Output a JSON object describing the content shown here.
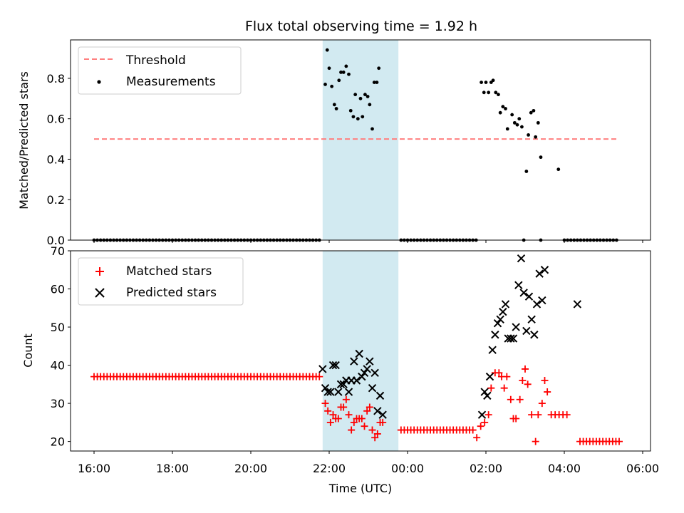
{
  "title": "Flux total observing time = 1.92 h",
  "chart_data": [
    {
      "type": "scatter",
      "panel": "top",
      "ylabel": "Matched/Predicted stars",
      "xlabel": "",
      "x_unit": "hours since 16:00 UTC",
      "xlim": [
        -0.6,
        14.2
      ],
      "ylim": [
        0,
        0.99
      ],
      "yticks": [
        "0.0",
        "0.2",
        "0.4",
        "0.6",
        "0.8"
      ],
      "grid": false,
      "legend_position": "upper left",
      "shaded_span": {
        "from": "21:50",
        "to": "23:46",
        "color": "#add8e6"
      },
      "threshold": {
        "name": "Threshold",
        "value": 0.5,
        "from": "16:00",
        "to": "05:24",
        "color": "#ff0000",
        "style": "dashed"
      },
      "series": [
        {
          "name": "Measurements",
          "color": "#000000",
          "marker": "dot",
          "zero_runs": [
            {
              "from": "16:00",
              "to": "21:46",
              "step_min": 5
            },
            {
              "from": "23:50",
              "to": "01:46",
              "step_min": 5
            },
            {
              "from": "04:00",
              "to": "05:24",
              "step_min": 5
            }
          ],
          "zero_points": [
            "02:58",
            "03:24"
          ],
          "points": [
            [
              "21:54",
              0.77
            ],
            [
              "21:57",
              0.94
            ],
            [
              "22:00",
              0.85
            ],
            [
              "22:04",
              0.76
            ],
            [
              "22:08",
              0.67
            ],
            [
              "22:11",
              0.65
            ],
            [
              "22:15",
              0.79
            ],
            [
              "22:18",
              0.83
            ],
            [
              "22:22",
              0.83
            ],
            [
              "22:26",
              0.86
            ],
            [
              "22:30",
              0.82
            ],
            [
              "22:33",
              0.64
            ],
            [
              "22:37",
              0.61
            ],
            [
              "22:40",
              0.72
            ],
            [
              "22:44",
              0.6
            ],
            [
              "22:48",
              0.7
            ],
            [
              "22:51",
              0.61
            ],
            [
              "22:55",
              0.72
            ],
            [
              "22:59",
              0.71
            ],
            [
              "23:02",
              0.67
            ],
            [
              "23:06",
              0.55
            ],
            [
              "23:09",
              0.78
            ],
            [
              "23:13",
              0.78
            ],
            [
              "23:16",
              0.85
            ],
            [
              "01:53",
              0.78
            ],
            [
              "01:57",
              0.73
            ],
            [
              "02:00",
              0.78
            ],
            [
              "02:04",
              0.73
            ],
            [
              "02:08",
              0.78
            ],
            [
              "02:11",
              0.79
            ],
            [
              "02:15",
              0.73
            ],
            [
              "02:19",
              0.72
            ],
            [
              "02:22",
              0.63
            ],
            [
              "02:26",
              0.66
            ],
            [
              "02:30",
              0.65
            ],
            [
              "02:33",
              0.55
            ],
            [
              "02:40",
              0.62
            ],
            [
              "02:44",
              0.58
            ],
            [
              "02:48",
              0.57
            ],
            [
              "02:51",
              0.6
            ],
            [
              "02:55",
              0.56
            ],
            [
              "03:02",
              0.34
            ],
            [
              "03:05",
              0.52
            ],
            [
              "03:09",
              0.63
            ],
            [
              "03:13",
              0.64
            ],
            [
              "03:16",
              0.51
            ],
            [
              "03:20",
              0.58
            ],
            [
              "03:24",
              0.41
            ],
            [
              "03:51",
              0.35
            ]
          ]
        }
      ]
    },
    {
      "type": "scatter",
      "panel": "bottom",
      "ylabel": "Count",
      "xlabel": "Time (UTC)",
      "x_unit": "hours since 16:00 UTC",
      "xlim": [
        -0.6,
        14.2
      ],
      "ylim": [
        17.5,
        70
      ],
      "yticks": [
        "20",
        "30",
        "40",
        "50",
        "60",
        "70"
      ],
      "xticks": [
        "16:00",
        "18:00",
        "20:00",
        "22:00",
        "00:00",
        "02:00",
        "04:00",
        "06:00"
      ],
      "grid": false,
      "legend_position": "upper left",
      "shaded_span": {
        "from": "21:50",
        "to": "23:46",
        "color": "#add8e6"
      },
      "series": [
        {
          "name": "Matched stars",
          "color": "#ff0000",
          "marker": "plus",
          "flat_runs": [
            {
              "from": "16:00",
              "to": "21:46",
              "step_min": 5,
              "value": 37
            },
            {
              "from": "23:50",
              "to": "01:42",
              "step_min": 5,
              "value": 23
            },
            {
              "from": "04:24",
              "to": "05:24",
              "step_min": 5,
              "value": 20
            }
          ],
          "points": [
            [
              "21:54",
              30
            ],
            [
              "21:58",
              28
            ],
            [
              "22:02",
              25
            ],
            [
              "22:06",
              27
            ],
            [
              "22:10",
              26
            ],
            [
              "22:14",
              26
            ],
            [
              "22:18",
              29
            ],
            [
              "22:22",
              29
            ],
            [
              "22:26",
              31
            ],
            [
              "22:30",
              27
            ],
            [
              "22:34",
              23
            ],
            [
              "22:38",
              25
            ],
            [
              "22:42",
              26
            ],
            [
              "22:46",
              26
            ],
            [
              "22:50",
              26
            ],
            [
              "22:54",
              24
            ],
            [
              "22:58",
              28
            ],
            [
              "23:02",
              29
            ],
            [
              "23:06",
              23
            ],
            [
              "23:10",
              21
            ],
            [
              "23:14",
              22
            ],
            [
              "23:18",
              25
            ],
            [
              "23:22",
              25
            ],
            [
              "01:46",
              21
            ],
            [
              "01:52",
              24
            ],
            [
              "01:58",
              25
            ],
            [
              "02:04",
              27
            ],
            [
              "02:08",
              34
            ],
            [
              "02:14",
              38
            ],
            [
              "02:20",
              38
            ],
            [
              "02:24",
              37
            ],
            [
              "02:28",
              34
            ],
            [
              "02:32",
              37
            ],
            [
              "02:38",
              31
            ],
            [
              "02:42",
              26
            ],
            [
              "02:46",
              26
            ],
            [
              "02:52",
              31
            ],
            [
              "02:56",
              36
            ],
            [
              "03:00",
              39
            ],
            [
              "03:04",
              35
            ],
            [
              "03:10",
              27
            ],
            [
              "03:16",
              20
            ],
            [
              "03:20",
              27
            ],
            [
              "03:26",
              30
            ],
            [
              "03:30",
              36
            ],
            [
              "03:34",
              33
            ],
            [
              "03:40",
              27
            ],
            [
              "03:46",
              27
            ],
            [
              "03:52",
              27
            ],
            [
              "03:58",
              27
            ],
            [
              "04:04",
              27
            ]
          ]
        },
        {
          "name": "Predicted stars",
          "color": "#000000",
          "marker": "x",
          "points": [
            [
              "21:50",
              39
            ],
            [
              "21:54",
              34
            ],
            [
              "21:58",
              33
            ],
            [
              "22:02",
              33
            ],
            [
              "22:06",
              40
            ],
            [
              "22:10",
              40
            ],
            [
              "22:14",
              33
            ],
            [
              "22:18",
              35
            ],
            [
              "22:22",
              35
            ],
            [
              "22:26",
              36
            ],
            [
              "22:30",
              33
            ],
            [
              "22:34",
              36
            ],
            [
              "22:38",
              41
            ],
            [
              "22:42",
              36
            ],
            [
              "22:46",
              43
            ],
            [
              "22:50",
              37
            ],
            [
              "22:54",
              38
            ],
            [
              "22:58",
              39
            ],
            [
              "23:02",
              41
            ],
            [
              "23:06",
              34
            ],
            [
              "23:10",
              38
            ],
            [
              "23:14",
              28
            ],
            [
              "23:18",
              32
            ],
            [
              "23:22",
              27
            ],
            [
              "01:54",
              27
            ],
            [
              "01:58",
              33
            ],
            [
              "02:02",
              32
            ],
            [
              "02:06",
              37
            ],
            [
              "02:10",
              44
            ],
            [
              "02:14",
              48
            ],
            [
              "02:18",
              51
            ],
            [
              "02:22",
              52
            ],
            [
              "02:26",
              54
            ],
            [
              "02:30",
              56
            ],
            [
              "02:34",
              47
            ],
            [
              "02:38",
              47
            ],
            [
              "02:42",
              47
            ],
            [
              "02:46",
              50
            ],
            [
              "02:50",
              61
            ],
            [
              "02:54",
              68
            ],
            [
              "02:58",
              59
            ],
            [
              "03:02",
              49
            ],
            [
              "03:06",
              58
            ],
            [
              "03:10",
              52
            ],
            [
              "03:14",
              48
            ],
            [
              "03:18",
              56
            ],
            [
              "03:22",
              64
            ],
            [
              "03:26",
              57
            ],
            [
              "03:30",
              65
            ],
            [
              "04:20",
              56
            ]
          ]
        }
      ]
    }
  ]
}
